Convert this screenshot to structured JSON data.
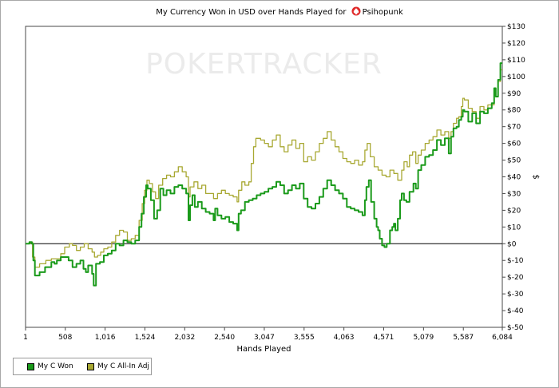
{
  "chart_data": {
    "type": "line",
    "title_prefix": "My Currency Won in USD over Hands Played for",
    "title_player": "Psihopunk",
    "watermark": "POKERTRACKER",
    "xlabel": "Hands Played",
    "ylabel": "$",
    "x_ticks": [
      1,
      508,
      1016,
      1524,
      2032,
      2540,
      3047,
      3555,
      4063,
      4571,
      5079,
      5587,
      6084
    ],
    "x_tick_labels": [
      "1",
      "508",
      "1,016",
      "1,524",
      "2,032",
      "2,540",
      "3,047",
      "3,555",
      "4,063",
      "4,571",
      "5,079",
      "5,587",
      "6,084"
    ],
    "xlim": [
      1,
      6084
    ],
    "ylim": [
      -50,
      130
    ],
    "y_ticks": [
      130,
      120,
      110,
      100,
      90,
      80,
      70,
      60,
      50,
      40,
      30,
      20,
      10,
      0,
      -10,
      -20,
      -30,
      -40,
      -50
    ],
    "y_tick_labels": [
      "$130",
      "$120",
      "$110",
      "$100",
      "$90",
      "$80",
      "$70",
      "$60",
      "$50",
      "$40",
      "$30",
      "$20",
      "$10",
      "$0",
      "$-10",
      "$-20",
      "$-30",
      "$-40",
      "$-50"
    ],
    "grid": false,
    "legend_position": "bottom-left",
    "series": [
      {
        "name": "My C Won",
        "color": "#1a9a1a",
        "points": [
          [
            1,
            0
          ],
          [
            50,
            1
          ],
          [
            80,
            0
          ],
          [
            100,
            -10
          ],
          [
            120,
            -19
          ],
          [
            180,
            -17
          ],
          [
            250,
            -14
          ],
          [
            300,
            -14
          ],
          [
            330,
            -11
          ],
          [
            370,
            -12
          ],
          [
            400,
            -10
          ],
          [
            450,
            -8
          ],
          [
            500,
            -8
          ],
          [
            550,
            -10
          ],
          [
            600,
            -14
          ],
          [
            650,
            -12
          ],
          [
            700,
            -10
          ],
          [
            740,
            -15
          ],
          [
            770,
            -17
          ],
          [
            800,
            -13
          ],
          [
            850,
            -18
          ],
          [
            870,
            -25
          ],
          [
            900,
            -12
          ],
          [
            950,
            -11
          ],
          [
            1000,
            -7
          ],
          [
            1050,
            -6
          ],
          [
            1100,
            -4
          ],
          [
            1150,
            0
          ],
          [
            1200,
            -1
          ],
          [
            1250,
            2
          ],
          [
            1300,
            1
          ],
          [
            1350,
            0
          ],
          [
            1400,
            2
          ],
          [
            1450,
            10
          ],
          [
            1480,
            18
          ],
          [
            1510,
            28
          ],
          [
            1540,
            35
          ],
          [
            1560,
            33
          ],
          [
            1600,
            26
          ],
          [
            1640,
            15
          ],
          [
            1680,
            20
          ],
          [
            1720,
            33
          ],
          [
            1760,
            29
          ],
          [
            1800,
            32
          ],
          [
            1850,
            30
          ],
          [
            1900,
            34
          ],
          [
            1950,
            35
          ],
          [
            2000,
            33
          ],
          [
            2050,
            30
          ],
          [
            2080,
            14
          ],
          [
            2100,
            23
          ],
          [
            2130,
            29
          ],
          [
            2160,
            22
          ],
          [
            2200,
            25
          ],
          [
            2250,
            21
          ],
          [
            2300,
            19
          ],
          [
            2350,
            18
          ],
          [
            2400,
            14
          ],
          [
            2420,
            21
          ],
          [
            2450,
            17
          ],
          [
            2500,
            15
          ],
          [
            2550,
            16
          ],
          [
            2600,
            13
          ],
          [
            2650,
            12
          ],
          [
            2700,
            8
          ],
          [
            2720,
            18
          ],
          [
            2750,
            20
          ],
          [
            2800,
            25
          ],
          [
            2850,
            26
          ],
          [
            2900,
            27
          ],
          [
            2950,
            29
          ],
          [
            3000,
            30
          ],
          [
            3050,
            31
          ],
          [
            3100,
            33
          ],
          [
            3150,
            34
          ],
          [
            3200,
            37
          ],
          [
            3250,
            35
          ],
          [
            3300,
            30
          ],
          [
            3350,
            32
          ],
          [
            3400,
            35
          ],
          [
            3450,
            33
          ],
          [
            3500,
            36
          ],
          [
            3550,
            27
          ],
          [
            3600,
            22
          ],
          [
            3650,
            21
          ],
          [
            3700,
            24
          ],
          [
            3750,
            28
          ],
          [
            3800,
            33
          ],
          [
            3850,
            38
          ],
          [
            3900,
            35
          ],
          [
            3950,
            32
          ],
          [
            4000,
            30
          ],
          [
            4050,
            27
          ],
          [
            4100,
            22
          ],
          [
            4150,
            21
          ],
          [
            4200,
            20
          ],
          [
            4250,
            19
          ],
          [
            4300,
            17
          ],
          [
            4330,
            26
          ],
          [
            4350,
            34
          ],
          [
            4380,
            38
          ],
          [
            4410,
            25
          ],
          [
            4450,
            15
          ],
          [
            4480,
            10
          ],
          [
            4500,
            8
          ],
          [
            4520,
            3
          ],
          [
            4550,
            -1
          ],
          [
            4580,
            -2
          ],
          [
            4610,
            0
          ],
          [
            4650,
            8
          ],
          [
            4680,
            10
          ],
          [
            4700,
            12
          ],
          [
            4720,
            8
          ],
          [
            4750,
            15
          ],
          [
            4780,
            26
          ],
          [
            4800,
            30
          ],
          [
            4830,
            26
          ],
          [
            4860,
            25
          ],
          [
            4900,
            31
          ],
          [
            4950,
            36
          ],
          [
            4980,
            33
          ],
          [
            5010,
            44
          ],
          [
            5050,
            47
          ],
          [
            5100,
            52
          ],
          [
            5150,
            53
          ],
          [
            5200,
            56
          ],
          [
            5250,
            62
          ],
          [
            5300,
            59
          ],
          [
            5350,
            63
          ],
          [
            5400,
            54
          ],
          [
            5430,
            64
          ],
          [
            5460,
            69
          ],
          [
            5500,
            70
          ],
          [
            5530,
            74
          ],
          [
            5560,
            76
          ],
          [
            5580,
            80
          ],
          [
            5600,
            79
          ],
          [
            5650,
            73
          ],
          [
            5700,
            78
          ],
          [
            5750,
            72
          ],
          [
            5800,
            79
          ],
          [
            5850,
            78
          ],
          [
            5900,
            81
          ],
          [
            5950,
            84
          ],
          [
            5980,
            93
          ],
          [
            6000,
            88
          ],
          [
            6030,
            98
          ],
          [
            6060,
            108
          ],
          [
            6084,
            108
          ]
        ]
      },
      {
        "name": "My C All-In Adj",
        "color": "#a8a832",
        "points": [
          [
            1,
            0
          ],
          [
            60,
            1
          ],
          [
            90,
            -8
          ],
          [
            120,
            -14
          ],
          [
            180,
            -12
          ],
          [
            260,
            -10
          ],
          [
            330,
            -9
          ],
          [
            400,
            -9
          ],
          [
            450,
            -6
          ],
          [
            500,
            -2
          ],
          [
            560,
            0
          ],
          [
            600,
            -1
          ],
          [
            650,
            -4
          ],
          [
            700,
            -2
          ],
          [
            750,
            0
          ],
          [
            800,
            -3
          ],
          [
            850,
            -5
          ],
          [
            880,
            -8
          ],
          [
            920,
            -7
          ],
          [
            960,
            -5
          ],
          [
            1000,
            -3
          ],
          [
            1050,
            -2
          ],
          [
            1100,
            1
          ],
          [
            1150,
            5
          ],
          [
            1200,
            8
          ],
          [
            1250,
            7
          ],
          [
            1300,
            2
          ],
          [
            1350,
            3
          ],
          [
            1400,
            5
          ],
          [
            1450,
            14
          ],
          [
            1490,
            24
          ],
          [
            1520,
            32
          ],
          [
            1550,
            38
          ],
          [
            1580,
            36
          ],
          [
            1620,
            31
          ],
          [
            1660,
            27
          ],
          [
            1700,
            35
          ],
          [
            1750,
            39
          ],
          [
            1800,
            41
          ],
          [
            1850,
            40
          ],
          [
            1900,
            43
          ],
          [
            1950,
            46
          ],
          [
            2000,
            43
          ],
          [
            2050,
            40
          ],
          [
            2080,
            28
          ],
          [
            2100,
            34
          ],
          [
            2150,
            37
          ],
          [
            2200,
            33
          ],
          [
            2250,
            35
          ],
          [
            2300,
            30
          ],
          [
            2350,
            30
          ],
          [
            2400,
            27
          ],
          [
            2450,
            30
          ],
          [
            2500,
            32
          ],
          [
            2550,
            30
          ],
          [
            2600,
            29
          ],
          [
            2650,
            28
          ],
          [
            2700,
            25
          ],
          [
            2720,
            32
          ],
          [
            2760,
            37
          ],
          [
            2800,
            35
          ],
          [
            2850,
            37
          ],
          [
            2880,
            48
          ],
          [
            2910,
            58
          ],
          [
            2940,
            63
          ],
          [
            3000,
            62
          ],
          [
            3050,
            60
          ],
          [
            3100,
            58
          ],
          [
            3150,
            62
          ],
          [
            3200,
            65
          ],
          [
            3250,
            58
          ],
          [
            3300,
            55
          ],
          [
            3350,
            59
          ],
          [
            3400,
            62
          ],
          [
            3450,
            57
          ],
          [
            3500,
            60
          ],
          [
            3550,
            49
          ],
          [
            3600,
            52
          ],
          [
            3650,
            50
          ],
          [
            3700,
            55
          ],
          [
            3750,
            60
          ],
          [
            3800,
            63
          ],
          [
            3850,
            67
          ],
          [
            3900,
            62
          ],
          [
            3950,
            58
          ],
          [
            4000,
            55
          ],
          [
            4050,
            51
          ],
          [
            4100,
            49
          ],
          [
            4150,
            48
          ],
          [
            4200,
            50
          ],
          [
            4250,
            47
          ],
          [
            4300,
            49
          ],
          [
            4330,
            56
          ],
          [
            4360,
            60
          ],
          [
            4400,
            52
          ],
          [
            4450,
            46
          ],
          [
            4500,
            44
          ],
          [
            4550,
            41
          ],
          [
            4600,
            40
          ],
          [
            4650,
            44
          ],
          [
            4700,
            42
          ],
          [
            4750,
            38
          ],
          [
            4800,
            44
          ],
          [
            4830,
            49
          ],
          [
            4870,
            46
          ],
          [
            4900,
            53
          ],
          [
            4940,
            55
          ],
          [
            4980,
            48
          ],
          [
            5010,
            53
          ],
          [
            5050,
            56
          ],
          [
            5100,
            60
          ],
          [
            5150,
            62
          ],
          [
            5200,
            64
          ],
          [
            5250,
            68
          ],
          [
            5300,
            65
          ],
          [
            5350,
            67
          ],
          [
            5400,
            63
          ],
          [
            5430,
            67
          ],
          [
            5460,
            72
          ],
          [
            5500,
            75
          ],
          [
            5530,
            76
          ],
          [
            5560,
            82
          ],
          [
            5580,
            87
          ],
          [
            5600,
            86
          ],
          [
            5650,
            81
          ],
          [
            5700,
            79
          ],
          [
            5750,
            75
          ],
          [
            5800,
            82
          ],
          [
            5850,
            80
          ],
          [
            5900,
            83
          ],
          [
            5950,
            83
          ],
          [
            5980,
            90
          ],
          [
            6000,
            88
          ],
          [
            6030,
            97
          ],
          [
            6060,
            104
          ],
          [
            6084,
            104
          ]
        ]
      }
    ]
  }
}
